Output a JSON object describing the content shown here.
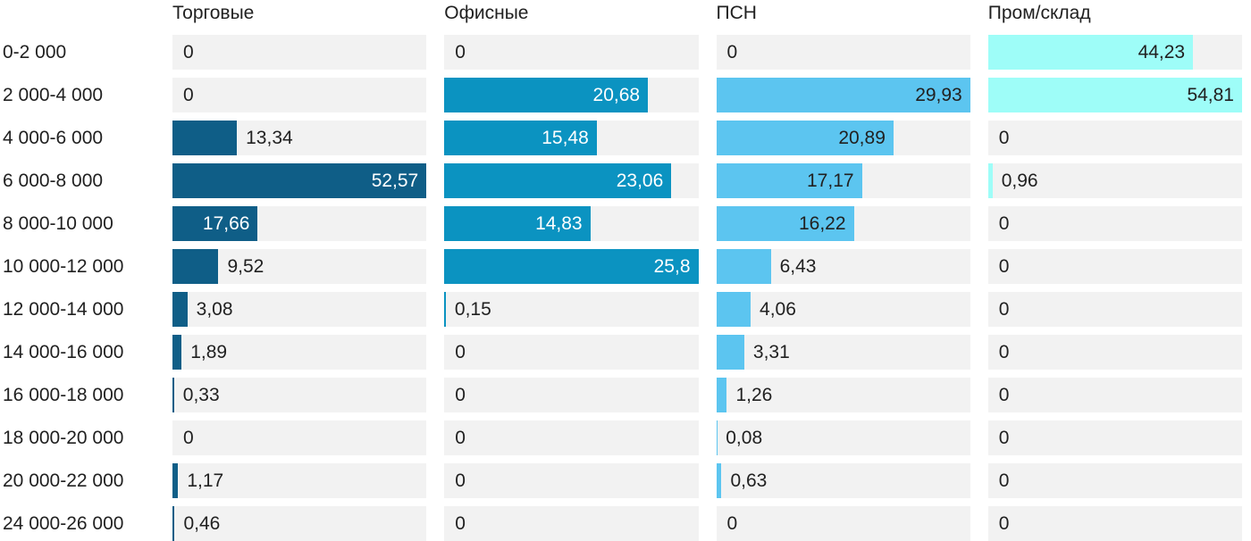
{
  "chart_data": {
    "type": "bar",
    "orientation": "horizontal",
    "title": "",
    "scaling": "each column scaled independently, column max = full track width",
    "track_color": "#f2f2f2",
    "text_color": "#212121",
    "value_label_format": "comma-decimal (e.g. 44,23)",
    "categories": [
      "0-2 000",
      "2 000-4 000",
      "4 000-6 000",
      "6 000-8 000",
      "8 000-10 000",
      "10 000-12 000",
      "12 000-14 000",
      "14 000-16 000",
      "16 000-18 000",
      "18 000-20 000",
      "20 000-22 000",
      "24 000-26 000"
    ],
    "series": [
      {
        "name": "Торговые",
        "color": "#0f5e87",
        "inside_label_color": "#ffffff",
        "values": [
          0,
          0,
          13.34,
          52.57,
          17.66,
          9.52,
          3.08,
          1.89,
          0.33,
          0,
          1.17,
          0.46
        ]
      },
      {
        "name": "Офисные",
        "color": "#0b93c1",
        "inside_label_color": "#ffffff",
        "values": [
          0,
          20.68,
          15.48,
          23.06,
          14.83,
          25.8,
          0.15,
          0,
          0,
          0,
          0,
          0
        ]
      },
      {
        "name": "ПСН",
        "color": "#5cc5f0",
        "inside_label_color": "#212121",
        "values": [
          0,
          29.93,
          20.89,
          17.17,
          16.22,
          6.43,
          4.06,
          3.31,
          1.26,
          0.08,
          0.63,
          0
        ]
      },
      {
        "name": "Пром/склад",
        "color": "#9efdf8",
        "inside_label_color": "#212121",
        "values": [
          44.23,
          54.81,
          0,
          0.96,
          0,
          0,
          0,
          0,
          0,
          0,
          0,
          0
        ]
      }
    ]
  }
}
